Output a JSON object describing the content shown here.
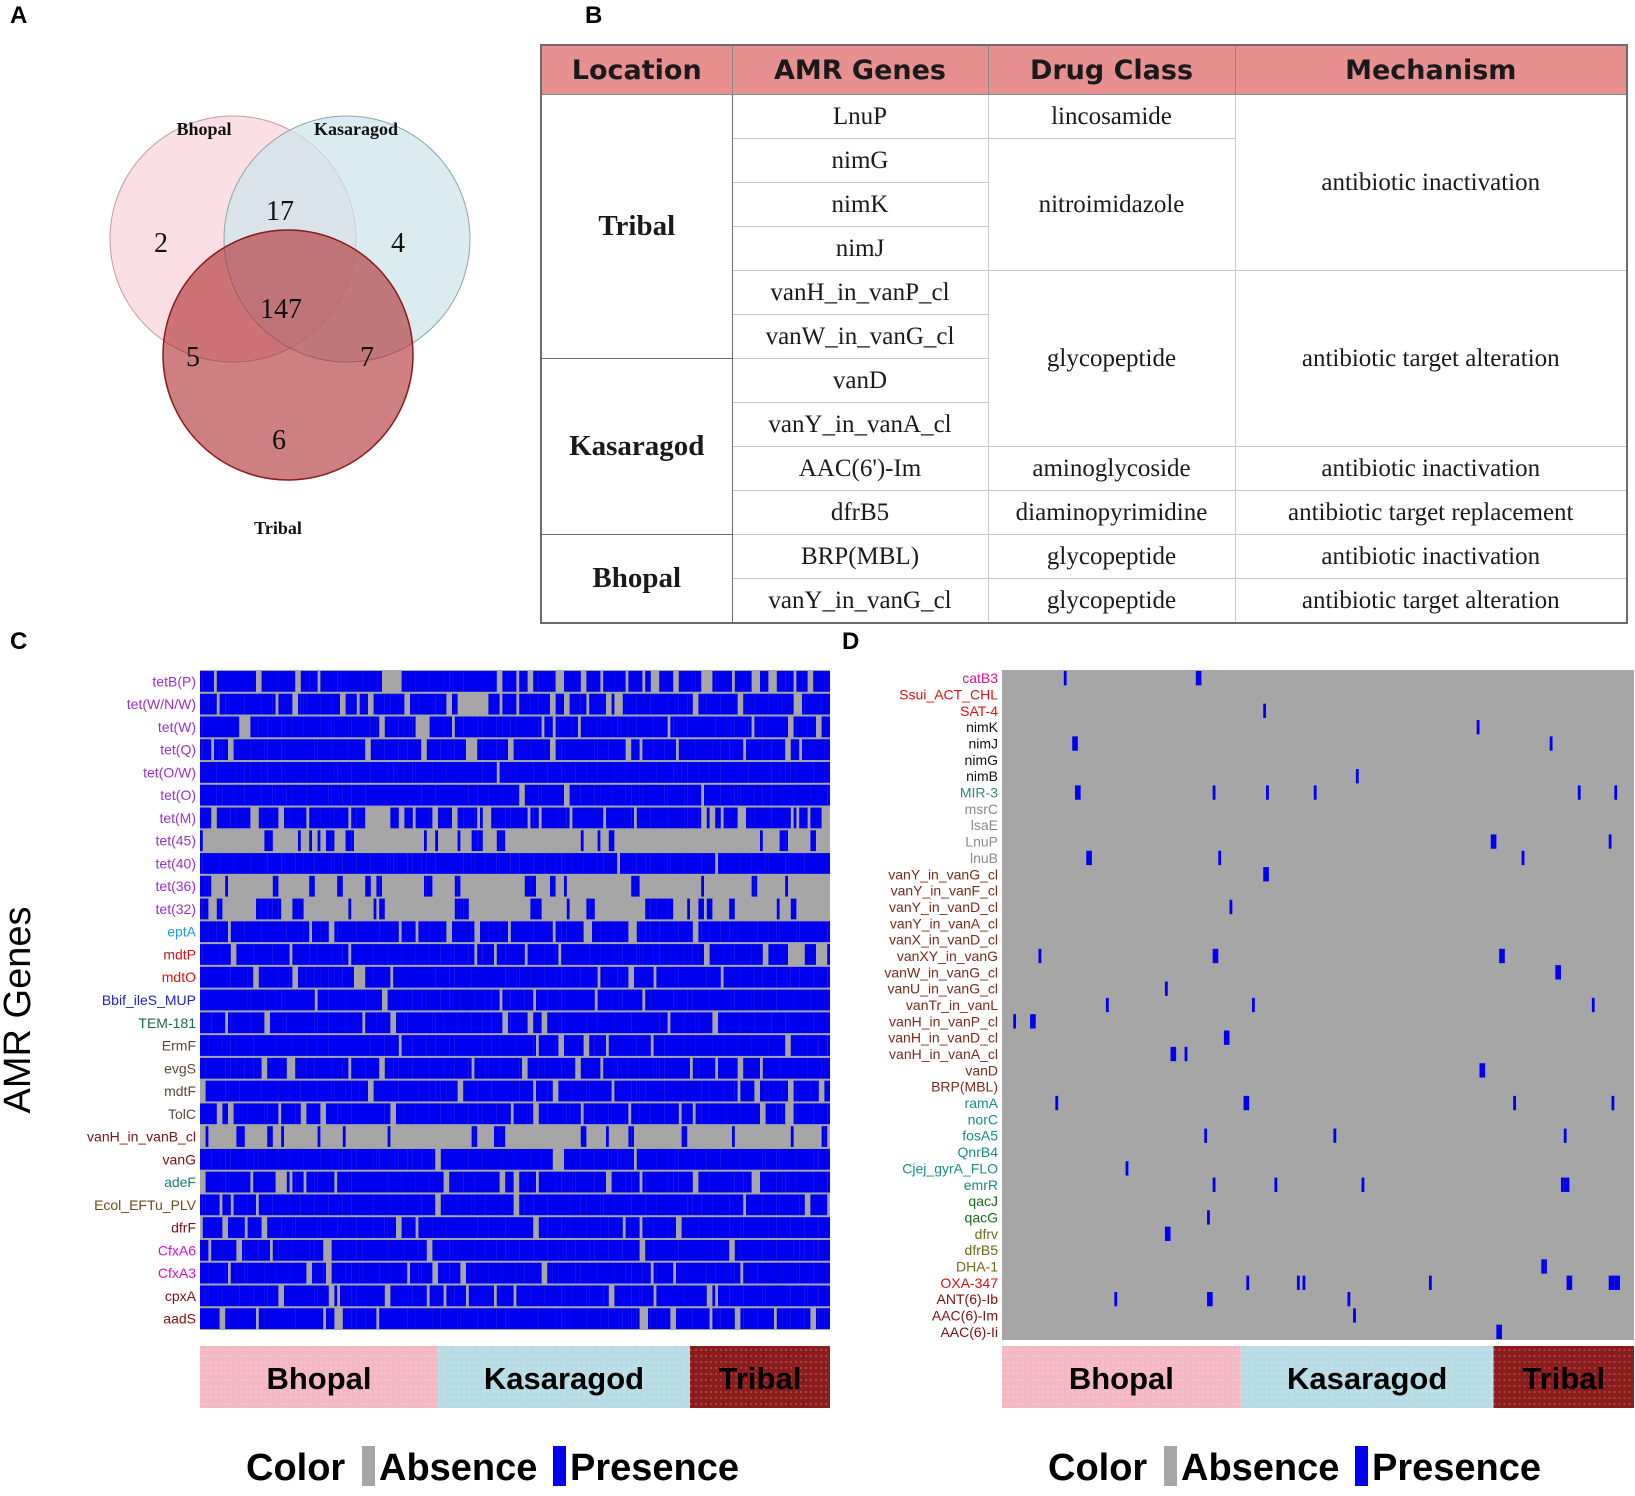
{
  "panels": {
    "a": "A",
    "b": "B",
    "c": "C",
    "d": "D"
  },
  "venn": {
    "sets": [
      {
        "name": "Bhopal",
        "color": "#f9d4dc"
      },
      {
        "name": "Kasaragod",
        "color": "#cce4ea"
      },
      {
        "name": "Tribal",
        "color": "#b03030"
      }
    ],
    "regions": {
      "bhopal_only": "2",
      "kasaragod_only": "4",
      "tribal_only": "6",
      "bhopal_kasaragod": "17",
      "bhopal_tribal": "5",
      "kasaragod_tribal": "7",
      "all": "147"
    }
  },
  "table": {
    "headers": [
      "Location",
      "AMR Genes",
      "Drug Class",
      "Mechanism"
    ],
    "locations": [
      "Tribal",
      "Kasaragod",
      "Bhopal"
    ],
    "genes": [
      "LnuP",
      "nimG",
      "nimK",
      "nimJ",
      "vanH_in_vanP_cl",
      "vanW_in_vanG_cl",
      "vanD",
      "vanY_in_vanA_cl",
      "AAC(6')-Im",
      "dfrB5",
      "BRP(MBL)",
      "vanY_in_vanG_cl"
    ],
    "drug_classes": [
      "lincosamide",
      "nitroimidazole",
      "glycopeptide",
      "aminoglycoside",
      "diaminopyrimidine",
      "glycopeptide",
      "glycopeptide"
    ],
    "mechanisms": [
      "antibiotic inactivation",
      "antibiotic target alteration",
      "antibiotic inactivation",
      "antibiotic target replacement",
      "antibiotic inactivation",
      "antibiotic target alteration"
    ],
    "header_color": "#e7908f"
  },
  "chart_data": [
    {
      "type": "heatmap",
      "panel": "C",
      "ylabel": "AMR Genes",
      "genes": [
        "tetB(P)",
        "tet(W/N/W)",
        "tet(W)",
        "tet(Q)",
        "tet(O/W)",
        "tet(O)",
        "tet(M)",
        "tet(45)",
        "tet(40)",
        "tet(36)",
        "tet(32)",
        "eptA",
        "mdtP",
        "mdtO",
        "Bbif_ileS_MUP",
        "TEM-181",
        "ErmF",
        "evgS",
        "mdtF",
        "TolC",
        "vanH_in_vanB_cl",
        "vanG",
        "adeF",
        "Ecol_EFTu_PLV",
        "dfrF",
        "CfxA6",
        "CfxA3",
        "cpxA",
        "aadS"
      ],
      "gene_colors": [
        "#9b30d0",
        "#9b30d0",
        "#9b30d0",
        "#9b30d0",
        "#9b30d0",
        "#9b30d0",
        "#9b30d0",
        "#9b30d0",
        "#9b30d0",
        "#9b30d0",
        "#9b30d0",
        "#1aa0e0",
        "#e01010",
        "#e01010",
        "#2020d0",
        "#1a6a4a",
        "#5a4a3a",
        "#5a4a3a",
        "#5a4a3a",
        "#5a4a3a",
        "#7a1010",
        "#7a1010",
        "#1a7a7a",
        "#6a4a1a",
        "#7a1010",
        "#e010d0",
        "#e010d0",
        "#7a1010",
        "#7a1010"
      ],
      "groups": [
        {
          "name": "Bhopal",
          "samples": 85,
          "color": "#f4b8c4"
        },
        {
          "name": "Kasaragod",
          "samples": 90,
          "color": "#b8dce6"
        },
        {
          "name": "Tribal",
          "samples": 50,
          "color": "#8c1c1c"
        }
      ],
      "presence_fraction": [
        0.62,
        0.62,
        0.88,
        0.8,
        0.95,
        0.97,
        0.55,
        0.38,
        0.97,
        0.42,
        0.48,
        0.78,
        0.78,
        0.86,
        0.86,
        0.82,
        0.88,
        0.8,
        0.84,
        0.82,
        0.25,
        0.94,
        0.8,
        0.86,
        0.82,
        0.8,
        0.84,
        0.8,
        0.82
      ],
      "legend": {
        "title": "Color",
        "absence": "Absence",
        "presence": "Presence",
        "absence_color": "#a6a6a6",
        "presence_color": "#0000f0"
      }
    },
    {
      "type": "heatmap",
      "panel": "D",
      "genes": [
        "catB3",
        "Ssui_ACT_CHL",
        "SAT-4",
        "nimK",
        "nimJ",
        "nimG",
        "nimB",
        "MIR-3",
        "msrC",
        "lsaE",
        "LnuP",
        "lnuB",
        "vanY_in_vanG_cl",
        "vanY_in_vanF_cl",
        "vanY_in_vanD_cl",
        "vanY_in_vanA_cl",
        "vanX_in_vanD_cl",
        "vanXY_in_vanG",
        "vanW_in_vanG_cl",
        "vanU_in_vanG_cl",
        "vanTr_in_vanL",
        "vanH_in_vanP_cl",
        "vanH_in_vanD_cl",
        "vanH_in_vanA_cl",
        "vanD",
        "BRP(MBL)",
        "ramA",
        "norC",
        "fosA5",
        "QnrB4",
        "Cjej_gyrA_FLO",
        "emrR",
        "qacJ",
        "qacG",
        "dfrv",
        "dfrB5",
        "DHA-1",
        "OXA-347",
        "ANT(6)-Ib",
        "AAC(6)-Im",
        "AAC(6)-Ii"
      ],
      "gene_colors": [
        "#e0109a",
        "#e01010",
        "#e01010",
        "#111111",
        "#111111",
        "#111111",
        "#111111",
        "#2a8a7a",
        "#8a8a8a",
        "#8a8a8a",
        "#8a8a8a",
        "#8a8a8a",
        "#7a2a1a",
        "#7a2a1a",
        "#7a2a1a",
        "#7a2a1a",
        "#7a2a1a",
        "#7a2a1a",
        "#7a2a1a",
        "#7a2a1a",
        "#7a2a1a",
        "#7a2a1a",
        "#7a2a1a",
        "#7a2a1a",
        "#7a2a1a",
        "#7a2a1a",
        "#1a8a8a",
        "#1a8a8a",
        "#1a8a8a",
        "#1a8a8a",
        "#1a8a8a",
        "#1a8a8a",
        "#1a6a1a",
        "#1a6a1a",
        "#6a6a1a",
        "#6a6a1a",
        "#6a6a1a",
        "#e01010",
        "#7a1010",
        "#7a1010",
        "#7a1010"
      ],
      "groups": [
        {
          "name": "Bhopal",
          "samples": 85,
          "color": "#f4b8c4"
        },
        {
          "name": "Kasaragod",
          "samples": 90,
          "color": "#b8dce6"
        },
        {
          "name": "Tribal",
          "samples": 50,
          "color": "#8c1c1c"
        }
      ],
      "presence_fraction": [
        0.03,
        0.01,
        0.05,
        0.01,
        0.02,
        0.01,
        0.02,
        0.1,
        0.01,
        0.04,
        0.02,
        0.04,
        0.01,
        0.03,
        0.01,
        0.01,
        0.01,
        0.04,
        0.02,
        0.01,
        0.04,
        0.03,
        0.02,
        0.08,
        0.01,
        0.01,
        0.08,
        0.05,
        0.08,
        0.02,
        0.03,
        0.12,
        0.03,
        0.02,
        0.02,
        0.01,
        0.03,
        0.12,
        0.02,
        0.01,
        0.01
      ],
      "legend": {
        "title": "Color",
        "absence": "Absence",
        "presence": "Presence",
        "absence_color": "#a6a6a6",
        "presence_color": "#0000f0"
      }
    }
  ]
}
